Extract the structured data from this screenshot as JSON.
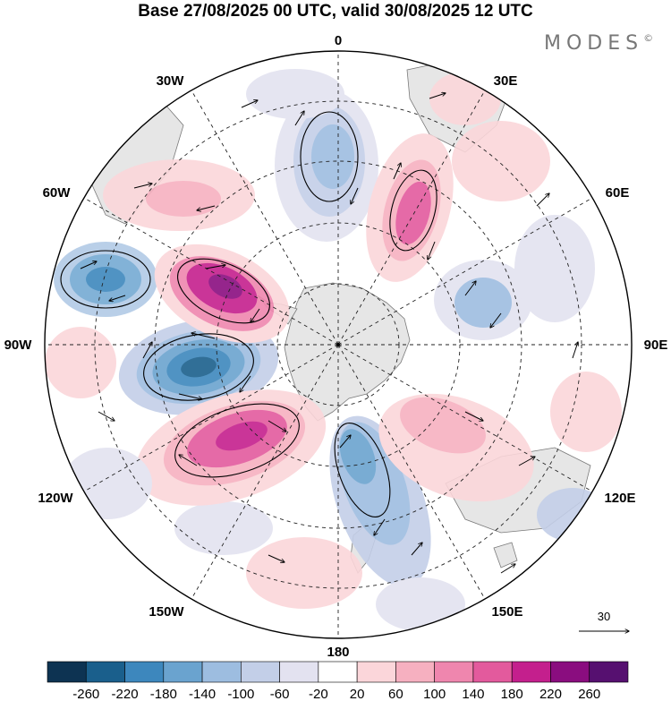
{
  "title": "Base 27/08/2025 00 UTC, valid 30/08/2025 12 UTC",
  "logo": "MODES",
  "logo_mark": "©",
  "longitude_labels": {
    "lon_0": "0",
    "lon_30e": "30E",
    "lon_60e": "60E",
    "lon_90e": "90E",
    "lon_120e": "120E",
    "lon_150e": "150E",
    "lon_180": "180",
    "lon_150w": "150W",
    "lon_120w": "120W",
    "lon_90w": "90W",
    "lon_60w": "60W",
    "lon_30w": "30W"
  },
  "reference_vector": {
    "label": "30"
  },
  "colorbar": {
    "ticks": [
      "-260",
      "-220",
      "-180",
      "-140",
      "-100",
      "-60",
      "-20",
      "20",
      "60",
      "100",
      "140",
      "180",
      "220",
      "260"
    ],
    "colors": [
      "#0d3352",
      "#1a5f8c",
      "#3d87bd",
      "#6aa3cf",
      "#9dbde0",
      "#c3cfe8",
      "#e3e2f0",
      "#ffffff",
      "#fbd6da",
      "#f6b0c0",
      "#ef86ae",
      "#e35a9d",
      "#c41f8d",
      "#8a0d7f",
      "#561070"
    ]
  },
  "colors": {
    "land": "#e6e6e6",
    "coast": "#7a7a7a",
    "grid": "#222222"
  }
}
